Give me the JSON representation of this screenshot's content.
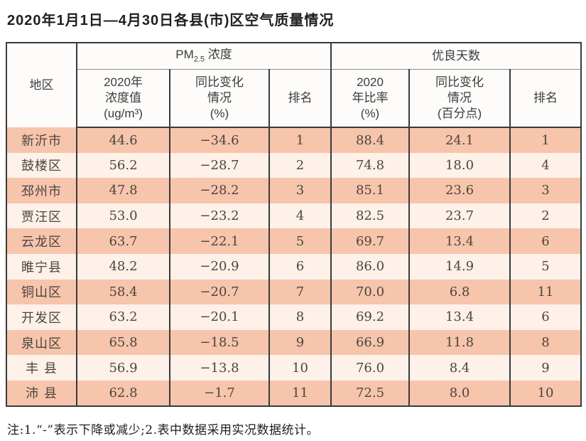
{
  "page": {
    "title": "2020年1月1日—4月30日各县(市)区空气质量情况",
    "note": "注:1.“-”表示下降或减少;2.表中数据采用实况数据统计。"
  },
  "colors": {
    "row_stripe_dark": "#f6c5ab",
    "row_stripe_light": "#fdf1e9",
    "table_border": "#3a3a3a"
  },
  "chart_data": {
    "type": "table",
    "title": "2020年1月1日—4月30日各县(市)区空气质量情况",
    "header": {
      "region": "地区",
      "pm25_group": {
        "prefix": "PM",
        "subscript": "2.5",
        "suffix": " 浓度"
      },
      "good_days_group": "优良天数",
      "sub_columns": [
        "2020年\n浓度值\n(ug/m³)",
        "同比变化\n情况\n(%)",
        "排名",
        "2020\n年比率\n(%)",
        "同比变化\n情况\n(百分点)",
        "排名"
      ]
    },
    "rows": [
      [
        "新沂市",
        "44.6",
        "−34.6",
        "1",
        "88.4",
        "24.1",
        "1"
      ],
      [
        "鼓楼区",
        "56.2",
        "−28.7",
        "2",
        "74.8",
        "18.0",
        "4"
      ],
      [
        "邳州市",
        "47.8",
        "−28.2",
        "3",
        "85.1",
        "23.6",
        "3"
      ],
      [
        "贾汪区",
        "53.0",
        "−23.2",
        "4",
        "82.5",
        "23.7",
        "2"
      ],
      [
        "云龙区",
        "63.7",
        "−22.1",
        "5",
        "69.7",
        "13.4",
        "6"
      ],
      [
        "睢宁县",
        "48.2",
        "−20.9",
        "6",
        "86.0",
        "14.9",
        "5"
      ],
      [
        "铜山区",
        "58.4",
        "−20.7",
        "7",
        "70.0",
        "6.8",
        "11"
      ],
      [
        "开发区",
        "63.2",
        "−20.1",
        "8",
        "69.2",
        "13.4",
        "6"
      ],
      [
        "泉山区",
        "65.8",
        "−18.5",
        "9",
        "66.9",
        "11.8",
        "8"
      ],
      [
        "丰 县",
        "56.9",
        "−13.8",
        "10",
        "76.0",
        "8.4",
        "9"
      ],
      [
        "沛 县",
        "62.8",
        "−1.7",
        "11",
        "72.5",
        "8.0",
        "10"
      ]
    ]
  }
}
